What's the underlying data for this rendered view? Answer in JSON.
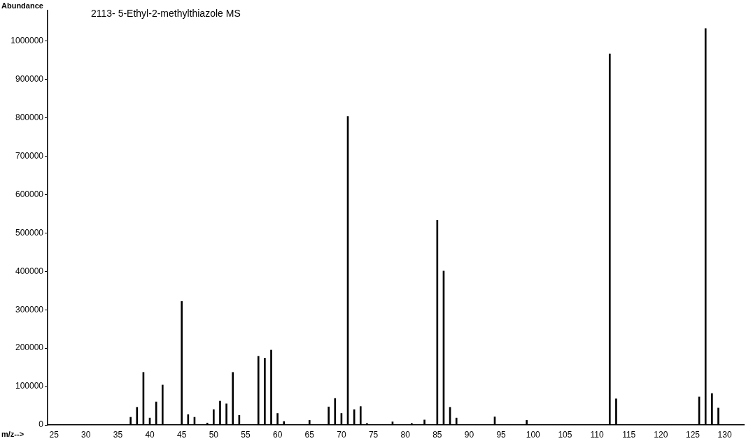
{
  "chart_data": {
    "type": "bar",
    "title": "2113- 5-Ethyl-2-methylthiazole MS",
    "xlabel": "m/z-->",
    "ylabel": "Abundance",
    "color": "#000000",
    "grid": false,
    "legend": false,
    "x": [
      37,
      38,
      39,
      40,
      41,
      42,
      45,
      46,
      47,
      49,
      50,
      51,
      52,
      53,
      54,
      57,
      58,
      59,
      60,
      61,
      65,
      68,
      69,
      70,
      71,
      72,
      73,
      74,
      78,
      81,
      83,
      85,
      86,
      87,
      88,
      94,
      99,
      112,
      113,
      126,
      127,
      128,
      129
    ],
    "values": [
      20000,
      46000,
      137000,
      18000,
      60000,
      104000,
      322000,
      27000,
      20000,
      5000,
      40000,
      62000,
      55000,
      137000,
      25000,
      179000,
      174000,
      195000,
      30000,
      9000,
      12000,
      47000,
      69000,
      30000,
      804000,
      40000,
      48000,
      4000,
      8000,
      4000,
      13000,
      533000,
      401000,
      46000,
      18000,
      21000,
      12000,
      967000,
      68000,
      73000,
      1033000,
      82000,
      44000
    ],
    "xlim": [
      24,
      133
    ],
    "xticks": [
      25,
      30,
      35,
      40,
      45,
      50,
      55,
      60,
      65,
      70,
      75,
      80,
      85,
      90,
      95,
      100,
      105,
      110,
      115,
      120,
      125,
      130
    ],
    "ylim": [
      0,
      1080000
    ],
    "yticks": [
      0,
      100000,
      200000,
      300000,
      400000,
      500000,
      600000,
      700000,
      800000,
      900000,
      1000000
    ]
  }
}
